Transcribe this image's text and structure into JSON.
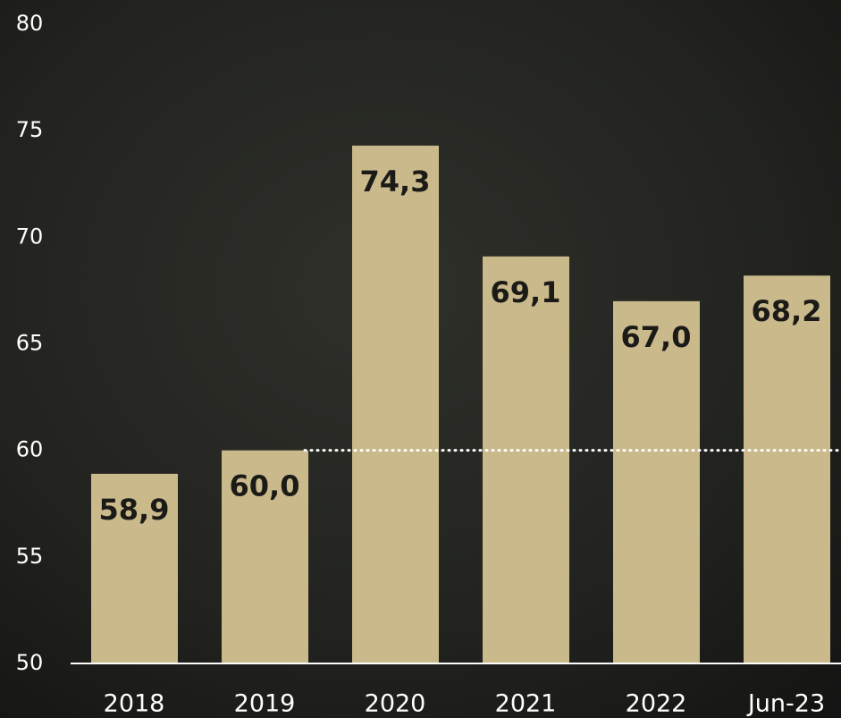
{
  "chart_data": {
    "type": "bar",
    "categories": [
      "2018",
      "2019",
      "2020",
      "2021",
      "2022",
      "Jun-23"
    ],
    "values": [
      58.9,
      60.0,
      74.3,
      69.1,
      67.0,
      68.2
    ],
    "value_labels": [
      "58,9",
      "60,0",
      "74,3",
      "69,1",
      "67,0",
      "68,2"
    ],
    "color": "#c9b98b",
    "ylim": [
      50,
      80
    ],
    "yticks": [
      50,
      55,
      60,
      65,
      70,
      75,
      80
    ],
    "reference_line": 60
  }
}
